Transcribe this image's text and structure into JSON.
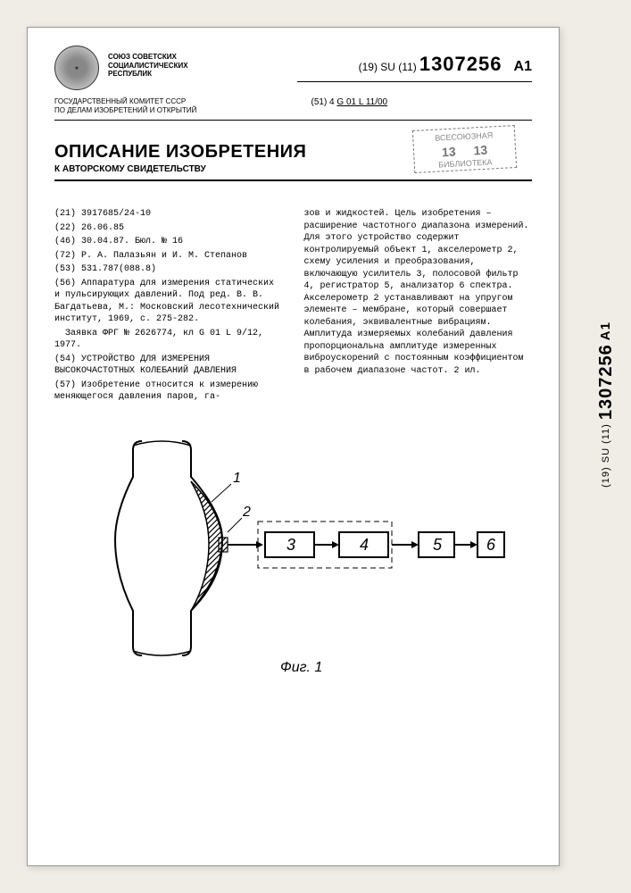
{
  "header": {
    "union_lines": "СОЮЗ СОВЕТСКИХ\nСОЦИАЛИСТИЧЕСКИХ\nРЕСПУБЛИК",
    "committee": "ГОСУДАРСТВЕННЫЙ КОМИТЕТ СССР\nПО ДЕЛАМ ИЗОБРЕТЕНИЙ И ОТКРЫТИЙ",
    "pub_prefix": "(19) SU (11)",
    "pub_number": "1307256",
    "pub_kind": "A1",
    "ipc_prefix": "(51) 4",
    "ipc_code": "G 01 L 11/00"
  },
  "stamp": {
    "line1": "ВСЕСОЮЗНАЯ",
    "num_left": "13",
    "num_right": "13",
    "line3": "БИБЛИОТЕКА"
  },
  "titleblock": {
    "main": "ОПИСАНИЕ ИЗОБРЕТЕНИЯ",
    "sub": "К АВТОРСКОМУ СВИДЕТЕЛЬСТВУ"
  },
  "left_col": {
    "app_no": "(21) 3917685/24-10",
    "date": "(22) 26.06.85",
    "pubdate": "(46) 30.04.87. Бюл. № 16",
    "inventors": "(72) Р. А. Палазьян и И. М. Степанов",
    "udc": "(53) 531.787(088.8)",
    "refs": "(56) Аппаратура для измерения статических и пульсирующих давлений. Под ред. В. В. Багдатьева, М.: Московский лесотехнический институт, 1969, с. 275-282.",
    "refs2": "Заявка ФРГ № 2626774, кл G 01 L 9/12, 1977.",
    "title54": "(54) УСТРОЙСТВО ДЛЯ ИЗМЕРЕНИЯ ВЫСОКОЧАСТОТНЫХ КОЛЕБАНИЙ ДАВЛЕНИЯ",
    "abs57": "(57) Изобретение относится к измерению меняющегося давления паров, га-"
  },
  "right_col": {
    "text": "зов и жидкостей. Цель изобретения – расширение частотного диапазона измерений. Для этого устройство содержит контролируемый объект 1, акселерометр 2, схему усиления и преобразования, включающую усилитель 3, полосовой фильтр 4, регистратор 5, анализатор 6 спектра. Акселерометр 2 устанавливают на упругом элементе – мембране, который совершает колебания, эквивалентные вибрациям. Амплитуда измеряемых колебаний давления пропорциональна амплитуде измеренных виброускорений с постоянным коэффициентом в рабочем диапазоне частот. 2 ил."
  },
  "figure": {
    "caption": "Фиг. 1",
    "nodes": [
      "1",
      "2",
      "3",
      "4",
      "5",
      "6"
    ],
    "block_labels": [
      "3",
      "4",
      "5",
      "6"
    ],
    "line_color": "#000000",
    "hatch_color": "#000000",
    "bg": "#ffffff"
  },
  "side": {
    "prefix": "(19) SU (11)",
    "number": "1307256",
    "kind": "A1"
  }
}
